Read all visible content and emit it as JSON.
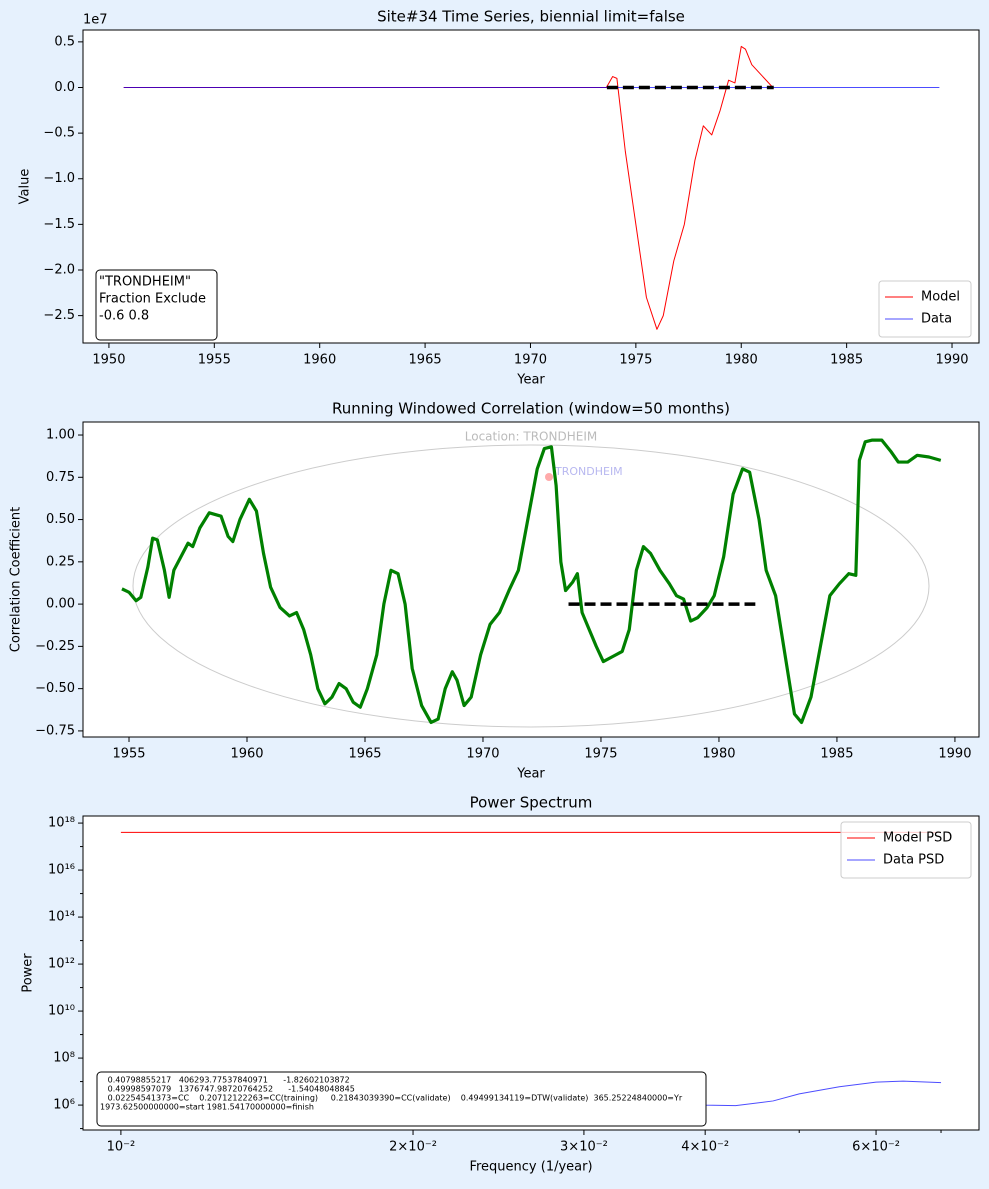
{
  "chart_data": [
    {
      "type": "line",
      "title": "Site#34 Time Series, biennial limit=false",
      "xlabel": "Year",
      "ylabel": "Value",
      "offset_label": "1e7",
      "xlim": [
        1948.77,
        1991.28
      ],
      "xticks": [
        1950,
        1955,
        1960,
        1965,
        1970,
        1975,
        1980,
        1985,
        1990
      ],
      "ylim": [
        -2.8,
        0.63
      ],
      "yticks": [
        {
          "value": 0.5,
          "label": "0.5"
        },
        {
          "value": 0,
          "label": "0.0"
        },
        {
          "value": -0.5,
          "label": "−0.5"
        },
        {
          "value": -1,
          "label": "−1.0"
        },
        {
          "value": -1.5,
          "label": "−1.5"
        },
        {
          "value": -2,
          "label": "−2.0"
        },
        {
          "value": -2.5,
          "label": "−2.5"
        }
      ],
      "series": [
        {
          "name": "Model",
          "color": "#ff0000",
          "alpha": 1,
          "width": 1,
          "x": [
            1950.7,
            1973.6,
            1973.9,
            1974.1,
            1974.5,
            1975.0,
            1975.5,
            1976.0,
            1976.3,
            1976.8,
            1977.3,
            1977.8,
            1978.2,
            1978.6,
            1979.0,
            1979.4,
            1979.7,
            1980.0,
            1980.2,
            1980.5,
            1980.9,
            1981.5
          ],
          "values": [
            0,
            0,
            0.12,
            0.1,
            -0.7,
            -1.5,
            -2.3,
            -2.65,
            -2.5,
            -1.9,
            -1.5,
            -0.8,
            -0.42,
            -0.52,
            -0.25,
            0.08,
            0.05,
            0.45,
            0.42,
            0.25,
            0.15,
            0
          ]
        },
        {
          "name": "Data",
          "color": "#0000ff",
          "alpha": 0.7,
          "width": 1,
          "x": [
            1950.7,
            1989.4
          ],
          "values": [
            0,
            0
          ]
        }
      ],
      "reference_line": {
        "x": [
          1973.625,
          1981.5417
        ],
        "y": 0
      },
      "legend": "lower right",
      "annotation": [
        "\"TRONDHEIM\"",
        "Fraction Exclude",
        "-0.6 0.8"
      ]
    },
    {
      "type": "line",
      "title": "Running Windowed Correlation (window=50 months)",
      "xlabel": "Year",
      "ylabel": "Correlation Coefficient",
      "xlim": [
        1953.05,
        1991.02
      ],
      "xticks": [
        1955,
        1960,
        1965,
        1970,
        1975,
        1980,
        1985,
        1990
      ],
      "ylim": [
        -0.786,
        1.077
      ],
      "yticks": [
        {
          "value": 1,
          "label": "1.00"
        },
        {
          "value": 0.75,
          "label": "0.75"
        },
        {
          "value": 0.5,
          "label": "0.50"
        },
        {
          "value": 0.25,
          "label": "0.25"
        },
        {
          "value": 0,
          "label": "0.00"
        },
        {
          "value": -0.25,
          "label": "−0.25"
        },
        {
          "value": -0.5,
          "label": "−0.50"
        },
        {
          "value": -0.75,
          "label": "−0.75"
        }
      ],
      "series": [
        {
          "name": "Correlation",
          "color": "#008000",
          "alpha": 1,
          "width": 3.2,
          "x": [
            1954.7,
            1955.0,
            1955.3,
            1955.5,
            1955.8,
            1956.0,
            1956.2,
            1956.5,
            1956.7,
            1956.9,
            1957.2,
            1957.5,
            1957.7,
            1958.0,
            1958.4,
            1958.9,
            1959.2,
            1959.4,
            1959.7,
            1960.1,
            1960.4,
            1960.7,
            1961.0,
            1961.4,
            1961.8,
            1962.1,
            1962.4,
            1962.7,
            1963.0,
            1963.3,
            1963.6,
            1963.9,
            1964.2,
            1964.5,
            1964.8,
            1965.1,
            1965.5,
            1965.8,
            1966.1,
            1966.4,
            1966.7,
            1967.0,
            1967.4,
            1967.8,
            1968.1,
            1968.4,
            1968.7,
            1968.9,
            1969.2,
            1969.5,
            1969.9,
            1970.3,
            1970.7,
            1971.1,
            1971.5,
            1971.9,
            1972.3,
            1972.6,
            1972.9,
            1973.1,
            1973.3,
            1973.5,
            1973.8,
            1974.0,
            1974.2,
            1974.5,
            1974.8,
            1975.1,
            1975.5,
            1975.9,
            1976.2,
            1976.5,
            1976.8,
            1977.1,
            1977.5,
            1977.9,
            1978.2,
            1978.5,
            1978.8,
            1979.1,
            1979.5,
            1979.8,
            1980.2,
            1980.6,
            1981.0,
            1981.3,
            1981.7,
            1982.0,
            1982.4,
            1982.8,
            1983.2,
            1983.5,
            1983.9,
            1984.3,
            1984.7,
            1985.1,
            1985.5,
            1985.8,
            1985.95,
            1986.2,
            1986.5,
            1986.9,
            1987.3,
            1987.6,
            1988.0,
            1988.4,
            1988.9,
            1989.4
          ],
          "values": [
            0.09,
            0.07,
            0.02,
            0.04,
            0.22,
            0.39,
            0.38,
            0.2,
            0.04,
            0.2,
            0.28,
            0.36,
            0.34,
            0.45,
            0.54,
            0.52,
            0.4,
            0.37,
            0.5,
            0.62,
            0.55,
            0.3,
            0.1,
            -0.02,
            -0.07,
            -0.05,
            -0.15,
            -0.3,
            -0.5,
            -0.59,
            -0.55,
            -0.47,
            -0.5,
            -0.58,
            -0.61,
            -0.5,
            -0.3,
            0.0,
            0.2,
            0.18,
            0.0,
            -0.38,
            -0.6,
            -0.7,
            -0.68,
            -0.5,
            -0.4,
            -0.45,
            -0.6,
            -0.55,
            -0.3,
            -0.12,
            -0.05,
            0.08,
            0.2,
            0.5,
            0.8,
            0.92,
            0.93,
            0.7,
            0.25,
            0.08,
            0.13,
            0.18,
            -0.05,
            -0.15,
            -0.25,
            -0.34,
            -0.31,
            -0.28,
            -0.15,
            0.2,
            0.34,
            0.3,
            0.2,
            0.12,
            0.05,
            0.03,
            -0.1,
            -0.08,
            -0.02,
            0.05,
            0.28,
            0.65,
            0.8,
            0.78,
            0.5,
            0.2,
            0.05,
            -0.3,
            -0.65,
            -0.7,
            -0.55,
            -0.25,
            0.05,
            0.12,
            0.18,
            0.17,
            0.85,
            0.96,
            0.97,
            0.97,
            0.9,
            0.84,
            0.84,
            0.88,
            0.87,
            0.85
          ]
        }
      ],
      "reference_line": {
        "x": [
          1973.625,
          1981.5417
        ],
        "y": 0
      },
      "map_labels": [
        "Location: TRONDHEIM",
        "TRONDHEIM"
      ]
    },
    {
      "type": "line",
      "title": "Power Spectrum",
      "xlabel": "Frequency (1/year)",
      "ylabel": "Power",
      "xscale": "log",
      "yscale": "log",
      "xlim": [
        0.00914,
        0.0766
      ],
      "xticks": [
        {
          "value": 0.01,
          "label": "10⁻²"
        },
        {
          "value": 0.02,
          "label": "2×10⁻²"
        },
        {
          "value": 0.03,
          "label": "3×10⁻²"
        },
        {
          "value": 0.04,
          "label": "4×10⁻²"
        },
        {
          "value": 0.06,
          "label": "6×10⁻²"
        }
      ],
      "xminor_ticks": [
        0.05,
        0.07
      ],
      "ylim": [
        87000,
        2e+18
      ],
      "yticks": [
        {
          "value": 1000000.0,
          "label": "10⁶"
        },
        {
          "value": 100000000.0,
          "label": "10⁸"
        },
        {
          "value": 10000000000.0,
          "label": "10¹⁰"
        },
        {
          "value": 1000000000000.0,
          "label": "10¹²"
        },
        {
          "value": 100000000000000.0,
          "label": "10¹⁴"
        },
        {
          "value": 1e+16,
          "label": "10¹⁶"
        },
        {
          "value": 1e+18,
          "label": "10¹⁸"
        }
      ],
      "yminor_ticks": [
        100000.0,
        10000000.0,
        1000000000.0,
        100000000000.0,
        10000000000000.0,
        1000000000000000.0,
        1e+17
      ],
      "series": [
        {
          "name": "Model PSD",
          "color": "#ff0000",
          "alpha": 1,
          "width": 1,
          "x": [
            0.01,
            0.07
          ],
          "values": [
            4e+17,
            4e+17
          ]
        },
        {
          "name": "Data PSD",
          "color": "#0000ff",
          "alpha": 0.7,
          "width": 1,
          "x": [
            0.01,
            0.015,
            0.02,
            0.025,
            0.03,
            0.035,
            0.04,
            0.043,
            0.047,
            0.05,
            0.055,
            0.06,
            0.064,
            0.07
          ],
          "values": [
            1500000,
            1800000,
            2000000,
            2000000,
            1800000,
            1400000,
            1000000,
            950000,
            1500000,
            3000000,
            6000000,
            9500000,
            10500000,
            9000000
          ]
        }
      ],
      "legend": "upper right",
      "annotation": [
        "   0.40798855217   406293.77537840971      -1.82602103872",
        "   0.49998597079   1376747.98720764252      -1.54048048845",
        "   0.02254541373=CC    0.20712122263=CC(training)     0.21843039390=CC(validate)    0.49499134119=DTW(validate)  365.25224840000=Yr",
        "1973.62500000000=start 1981.54170000000=finish"
      ]
    }
  ]
}
